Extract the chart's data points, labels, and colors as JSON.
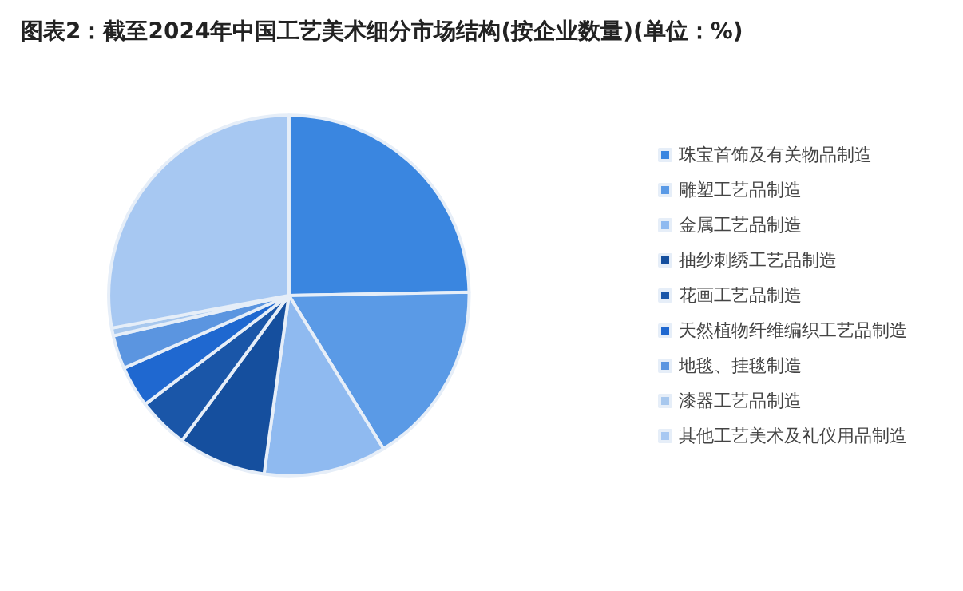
{
  "chart_data": {
    "type": "pie",
    "title": "图表2：截至2024年中国工艺美术细分市场结构(按企业数量)(单位：%)",
    "categories": [
      "珠宝首饰及有关物品制造",
      "雕塑工艺品制造",
      "金属工艺品制造",
      "抽纱刺绣工艺品制造",
      "花画工艺品制造",
      "天然植物纤维编织工艺品制造",
      "地毯、挂毯制造",
      "漆器工艺品制造",
      "其他工艺美术及礼仪用品制造"
    ],
    "values": [
      24.7,
      16.5,
      11.0,
      7.9,
      4.6,
      3.7,
      3.0,
      0.7,
      27.9
    ],
    "colors": [
      "#3a86e0",
      "#5a9ae6",
      "#8fbaf0",
      "#154f9e",
      "#1a56a8",
      "#1f68d0",
      "#5b95e0",
      "#a8c8ee",
      "#a7c8f2"
    ],
    "legend": "right"
  }
}
